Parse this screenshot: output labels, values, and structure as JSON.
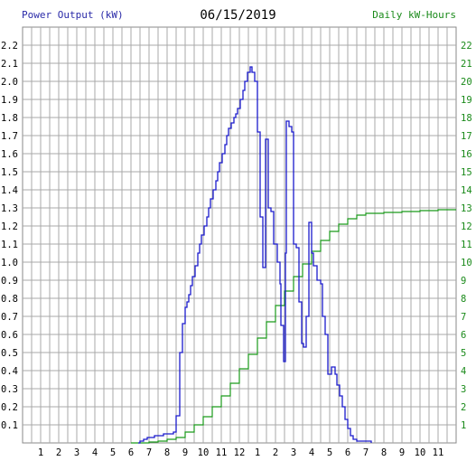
{
  "chart_data": {
    "type": "line",
    "date_title": "06/15/2019",
    "left_axis_label": "Power Output (kW)",
    "right_axis_label": "Daily kW-Hours",
    "x_ticks": [
      "1",
      "2",
      "3",
      "4",
      "5",
      "6",
      "7",
      "8",
      "9",
      "10",
      "11",
      "12",
      "1",
      "2",
      "3",
      "4",
      "5",
      "6",
      "7",
      "8",
      "9",
      "10",
      "11"
    ],
    "x_range": [
      0,
      24
    ],
    "ylim_left": [
      0,
      2.3
    ],
    "ylim_right": [
      0,
      23
    ],
    "y_ticks_left": [
      "0.1",
      "0.2",
      "0.3",
      "0.4",
      "0.5",
      "0.6",
      "0.7",
      "0.8",
      "0.9",
      "1.0",
      "1.1",
      "1.2",
      "1.3",
      "1.4",
      "1.5",
      "1.6",
      "1.7",
      "1.8",
      "1.9",
      "2.0",
      "2.1",
      "2.2"
    ],
    "y_ticks_right": [
      "1",
      "2",
      "3",
      "4",
      "5",
      "6",
      "7",
      "8",
      "9",
      "10",
      "11",
      "12",
      "13",
      "14",
      "15",
      "16",
      "17",
      "18",
      "19",
      "20",
      "21",
      "22"
    ],
    "grid": true,
    "colors": {
      "power": "#1a1acc",
      "energy": "#1a9a1a",
      "grid": "#a8a8a8",
      "left_label": "#2a2aa8",
      "right_label": "#1a8a1a"
    },
    "series": [
      {
        "name": "Power Output (kW)",
        "step": true,
        "points": [
          [
            6.4,
            0.0
          ],
          [
            6.5,
            0.01
          ],
          [
            6.7,
            0.02
          ],
          [
            6.9,
            0.03
          ],
          [
            7.3,
            0.04
          ],
          [
            7.8,
            0.05
          ],
          [
            8.35,
            0.06
          ],
          [
            8.5,
            0.15
          ],
          [
            8.7,
            0.5
          ],
          [
            8.85,
            0.66
          ],
          [
            9.0,
            0.75
          ],
          [
            9.1,
            0.78
          ],
          [
            9.2,
            0.82
          ],
          [
            9.3,
            0.87
          ],
          [
            9.4,
            0.92
          ],
          [
            9.55,
            0.98
          ],
          [
            9.7,
            1.05
          ],
          [
            9.8,
            1.1
          ],
          [
            9.9,
            1.15
          ],
          [
            10.05,
            1.2
          ],
          [
            10.2,
            1.25
          ],
          [
            10.3,
            1.3
          ],
          [
            10.4,
            1.35
          ],
          [
            10.55,
            1.4
          ],
          [
            10.7,
            1.45
          ],
          [
            10.8,
            1.5
          ],
          [
            10.9,
            1.55
          ],
          [
            11.05,
            1.6
          ],
          [
            11.2,
            1.65
          ],
          [
            11.3,
            1.7
          ],
          [
            11.4,
            1.74
          ],
          [
            11.55,
            1.77
          ],
          [
            11.7,
            1.8
          ],
          [
            11.8,
            1.82
          ],
          [
            11.9,
            1.85
          ],
          [
            12.05,
            1.9
          ],
          [
            12.2,
            1.95
          ],
          [
            12.3,
            2.0
          ],
          [
            12.45,
            2.05
          ],
          [
            12.6,
            2.08
          ],
          [
            12.7,
            2.05
          ],
          [
            12.85,
            2.0
          ],
          [
            13.0,
            1.72
          ],
          [
            13.15,
            1.25
          ],
          [
            13.3,
            0.97
          ],
          [
            13.45,
            1.68
          ],
          [
            13.6,
            1.3
          ],
          [
            13.75,
            1.28
          ],
          [
            13.9,
            1.1
          ],
          [
            14.1,
            1.0
          ],
          [
            14.25,
            0.88
          ],
          [
            14.3,
            0.65
          ],
          [
            14.45,
            0.45
          ],
          [
            14.55,
            1.05
          ],
          [
            14.6,
            1.78
          ],
          [
            14.75,
            1.75
          ],
          [
            14.9,
            1.72
          ],
          [
            15.0,
            1.1
          ],
          [
            15.15,
            1.08
          ],
          [
            15.3,
            0.78
          ],
          [
            15.45,
            0.55
          ],
          [
            15.55,
            0.53
          ],
          [
            15.7,
            0.7
          ],
          [
            15.85,
            1.22
          ],
          [
            16.0,
            1.05
          ],
          [
            16.1,
            0.98
          ],
          [
            16.3,
            0.9
          ],
          [
            16.5,
            0.88
          ],
          [
            16.6,
            0.7
          ],
          [
            16.75,
            0.6
          ],
          [
            16.9,
            0.38
          ],
          [
            17.1,
            0.42
          ],
          [
            17.3,
            0.38
          ],
          [
            17.4,
            0.32
          ],
          [
            17.55,
            0.26
          ],
          [
            17.7,
            0.2
          ],
          [
            17.85,
            0.13
          ],
          [
            18.0,
            0.08
          ],
          [
            18.15,
            0.04
          ],
          [
            18.3,
            0.02
          ],
          [
            18.5,
            0.01
          ],
          [
            19.3,
            0.0
          ]
        ]
      },
      {
        "name": "Daily kW-Hours",
        "step": true,
        "points": [
          [
            6.0,
            0.0
          ],
          [
            7.0,
            0.05
          ],
          [
            7.5,
            0.1
          ],
          [
            8.0,
            0.2
          ],
          [
            8.5,
            0.3
          ],
          [
            9.0,
            0.6
          ],
          [
            9.5,
            1.0
          ],
          [
            10.0,
            1.45
          ],
          [
            10.5,
            2.0
          ],
          [
            11.0,
            2.6
          ],
          [
            11.5,
            3.3
          ],
          [
            12.0,
            4.1
          ],
          [
            12.5,
            4.9
          ],
          [
            13.0,
            5.8
          ],
          [
            13.5,
            6.7
          ],
          [
            14.0,
            7.6
          ],
          [
            14.5,
            8.4
          ],
          [
            15.0,
            9.2
          ],
          [
            15.5,
            9.9
          ],
          [
            16.0,
            10.6
          ],
          [
            16.5,
            11.2
          ],
          [
            17.0,
            11.7
          ],
          [
            17.5,
            12.1
          ],
          [
            18.0,
            12.4
          ],
          [
            18.5,
            12.6
          ],
          [
            19.0,
            12.7
          ],
          [
            20.0,
            12.75
          ],
          [
            21.0,
            12.8
          ],
          [
            22.0,
            12.85
          ],
          [
            23.0,
            12.9
          ],
          [
            24.0,
            12.9
          ]
        ]
      }
    ]
  }
}
